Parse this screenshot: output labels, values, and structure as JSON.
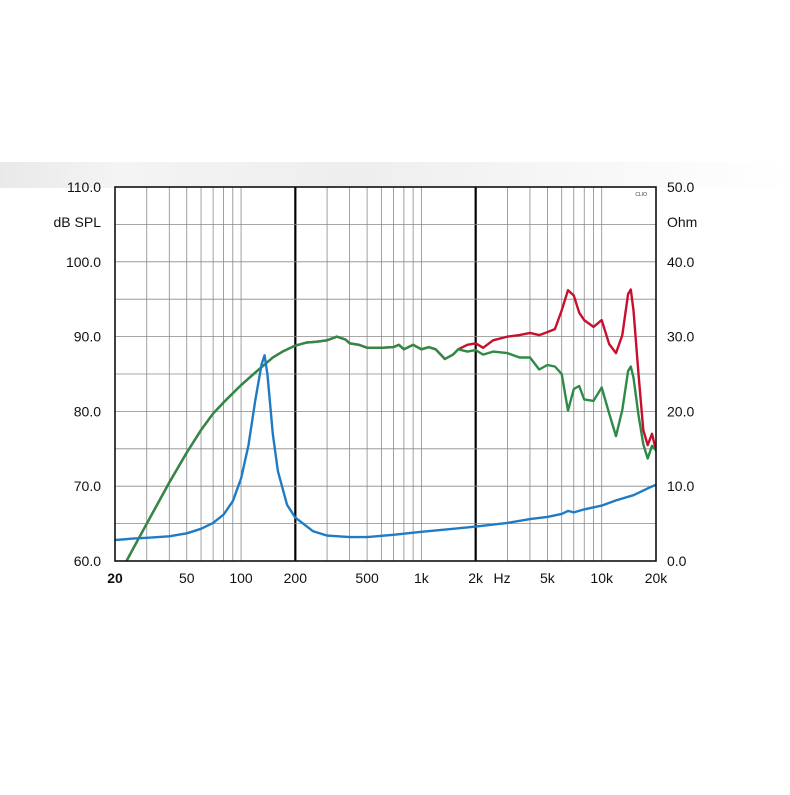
{
  "chart_data": {
    "type": "line",
    "x_scale": "log",
    "xlim": [
      20,
      20000
    ],
    "y_left": {
      "label": "dB SPL",
      "lim": [
        60,
        110
      ],
      "ticks": [
        "110.0",
        "100.0",
        "90.0",
        "80.0",
        "70.0",
        "60.0"
      ]
    },
    "y_right": {
      "label": "Ohm",
      "lim": [
        0,
        50
      ],
      "ticks": [
        "50.0",
        "40.0",
        "30.0",
        "20.0",
        "10.0",
        "0.0"
      ]
    },
    "x_ticks": [
      {
        "label": "20",
        "value": 20,
        "bold": true
      },
      {
        "label": "50",
        "value": 50
      },
      {
        "label": "100",
        "value": 100
      },
      {
        "label": "200",
        "value": 200
      },
      {
        "label": "500",
        "value": 500
      },
      {
        "label": "1k",
        "value": 1000
      },
      {
        "label": "2k",
        "value": 2000
      },
      {
        "label": "5k",
        "value": 5000
      },
      {
        "label": "10k",
        "value": 10000
      },
      {
        "label": "20k",
        "value": 20000
      }
    ],
    "x_unit_label": "Hz",
    "x_unit_value": 2800,
    "watermark": "CLIO",
    "grid": true,
    "bold_gridlines": [
      200,
      2000
    ],
    "series": [
      {
        "color": "#c8102e",
        "axis": "left",
        "x": [
          20,
          22,
          25,
          30,
          40,
          50,
          60,
          70,
          80,
          100,
          120,
          150,
          170,
          200,
          230,
          260,
          300,
          340,
          380,
          400,
          450,
          500,
          600,
          700,
          750,
          800,
          900,
          1000,
          1100,
          1200,
          1350,
          1500,
          1600,
          1800,
          2000,
          2200,
          2500,
          3000,
          3500,
          4000,
          4500,
          5000,
          5500,
          6000,
          6500,
          7000,
          7500,
          8000,
          9000,
          10000,
          11000,
          12000,
          13000,
          14000,
          14500,
          15000,
          16000,
          17000,
          18000,
          19000,
          20000
        ],
        "y": [
          57.5,
          59,
          61.5,
          65,
          70.5,
          74.5,
          77.5,
          79.7,
          81.2,
          83.5,
          85.2,
          87.2,
          88.0,
          88.8,
          89.2,
          89.3,
          89.5,
          90.0,
          89.6,
          89.1,
          88.9,
          88.5,
          88.5,
          88.6,
          88.9,
          88.3,
          88.9,
          88.3,
          88.6,
          88.3,
          87.0,
          87.6,
          88.3,
          88.9,
          89.1,
          88.5,
          89.5,
          90.0,
          90.2,
          90.5,
          90.2,
          90.6,
          91.0,
          93.5,
          96.2,
          95.5,
          93.2,
          92.2,
          91.3,
          92.2,
          89.0,
          87.8,
          90.2,
          95.7,
          96.3,
          93.5,
          85.0,
          77.5,
          75.5,
          77.0,
          74.8
        ]
      },
      {
        "color": "#2e8b47",
        "axis": "left",
        "x": [
          20,
          22,
          25,
          30,
          40,
          50,
          60,
          70,
          80,
          100,
          120,
          150,
          170,
          200,
          230,
          260,
          300,
          340,
          380,
          400,
          450,
          500,
          600,
          700,
          750,
          800,
          900,
          1000,
          1100,
          1200,
          1350,
          1500,
          1600,
          1800,
          2000,
          2200,
          2500,
          3000,
          3500,
          4000,
          4500,
          5000,
          5500,
          6000,
          6500,
          7000,
          7500,
          8000,
          9000,
          10000,
          11000,
          12000,
          13000,
          14000,
          14500,
          15000,
          16000,
          17000,
          18000,
          19000,
          20000
        ],
        "y": [
          57.5,
          59,
          61.5,
          65,
          70.5,
          74.5,
          77.5,
          79.7,
          81.2,
          83.5,
          85.2,
          87.2,
          88.0,
          88.8,
          89.2,
          89.3,
          89.5,
          90.0,
          89.6,
          89.1,
          88.9,
          88.5,
          88.5,
          88.6,
          88.9,
          88.3,
          88.9,
          88.3,
          88.6,
          88.3,
          87.0,
          87.6,
          88.3,
          88.0,
          88.2,
          87.6,
          88.0,
          87.8,
          87.2,
          87.2,
          85.6,
          86.2,
          86.0,
          85.0,
          80.1,
          83.0,
          83.4,
          81.6,
          81.4,
          83.2,
          79.7,
          76.7,
          80.2,
          85.4,
          86.0,
          84.5,
          79.5,
          75.6,
          73.7,
          75.4,
          74.8
        ]
      },
      {
        "color": "#1f7cc4",
        "axis": "right",
        "x": [
          20,
          25,
          30,
          40,
          50,
          60,
          70,
          80,
          90,
          100,
          110,
          120,
          130,
          135,
          140,
          145,
          150,
          160,
          180,
          200,
          250,
          300,
          400,
          500,
          700,
          1000,
          1500,
          2000,
          3000,
          4000,
          5000,
          6000,
          6500,
          7000,
          8000,
          10000,
          12000,
          15000,
          18000,
          20000
        ],
        "y": [
          2.8,
          3.0,
          3.1,
          3.3,
          3.7,
          4.3,
          5.1,
          6.2,
          8.0,
          11.0,
          15.5,
          21.5,
          26.3,
          27.5,
          25.0,
          21.0,
          17.0,
          12.0,
          7.5,
          5.8,
          4.0,
          3.4,
          3.2,
          3.2,
          3.5,
          3.9,
          4.3,
          4.6,
          5.1,
          5.6,
          5.9,
          6.3,
          6.7,
          6.5,
          6.9,
          7.4,
          8.1,
          8.8,
          9.7,
          10.2
        ]
      }
    ]
  }
}
